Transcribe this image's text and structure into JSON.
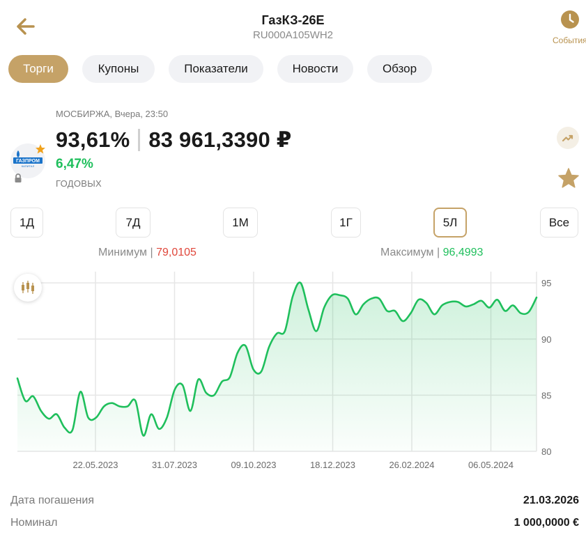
{
  "header": {
    "title": "ГазКЗ-26Е",
    "subtitle": "RU000A105WH2",
    "events_label": "События"
  },
  "tabs": [
    {
      "label": "Торги",
      "active": true
    },
    {
      "label": "Купоны",
      "active": false
    },
    {
      "label": "Показатели",
      "active": false
    },
    {
      "label": "Новости",
      "active": false
    },
    {
      "label": "Обзор",
      "active": false
    }
  ],
  "quote": {
    "exchange_line": "МОСБИРЖА, Вчера, 23:50",
    "price_percent": "93,61%",
    "price_rub": "83 961,3390 ₽",
    "yield": "6,47%",
    "yield_label": "ГОДОВЫХ",
    "logo_text": "ГАЗПРОМ",
    "logo_subtext": "КАПИТАЛ"
  },
  "periods": [
    {
      "label": "1Д",
      "active": false
    },
    {
      "label": "7Д",
      "active": false
    },
    {
      "label": "1М",
      "active": false
    },
    {
      "label": "1Г",
      "active": false
    },
    {
      "label": "5Л",
      "active": true
    },
    {
      "label": "Все",
      "active": false
    }
  ],
  "range": {
    "min_label": "Минимум",
    "min_value": "79,0105",
    "max_label": "Максимум",
    "max_value": "96,4993"
  },
  "colors": {
    "accent": "#c5a267",
    "positive": "#1fbf5c",
    "negative": "#e0473b"
  },
  "chart_data": {
    "type": "area",
    "x_ticks": [
      "22.05.2023",
      "31.07.2023",
      "09.10.2023",
      "18.12.2023",
      "26.02.2024",
      "06.05.2024"
    ],
    "y_ticks": [
      80,
      85,
      90,
      95
    ],
    "ylim": [
      80,
      96
    ],
    "grid": true,
    "series": [
      {
        "values": [
          86.5,
          84.5,
          84.9,
          83.6,
          82.9,
          83.3,
          82.1,
          81.9,
          85.3,
          83.0,
          83.0,
          84.0,
          84.3,
          84.0,
          84.0,
          84.5,
          81.4,
          83.3,
          82.0,
          83.0,
          85.5,
          85.9,
          83.6,
          86.4,
          85.2,
          85.0,
          86.2,
          86.6,
          88.8,
          89.4,
          87.3,
          87.1,
          89.3,
          90.5,
          90.7,
          93.8,
          95.0,
          92.6,
          90.7,
          92.8,
          93.9,
          93.9,
          93.6,
          92.2,
          93.1,
          93.6,
          93.6,
          92.5,
          92.5,
          91.6,
          92.3,
          93.5,
          93.2,
          92.2,
          93.0,
          93.3,
          93.3,
          92.9,
          93.1,
          93.4,
          92.8,
          93.5,
          92.5,
          93.0,
          92.3,
          92.4,
          93.7
        ]
      }
    ]
  },
  "info": [
    {
      "label": "Дата погашения",
      "value": "21.03.2026"
    },
    {
      "label": "Номинал",
      "value": "1 000,0000 €"
    }
  ]
}
